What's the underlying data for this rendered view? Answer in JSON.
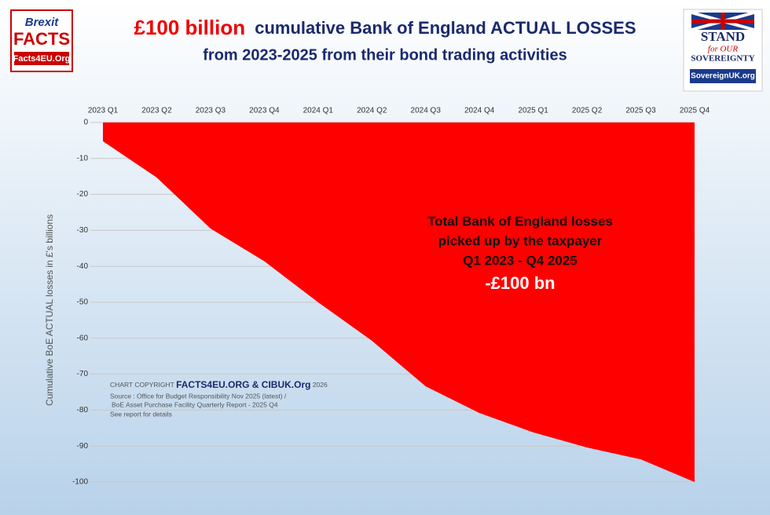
{
  "chart_data": {
    "type": "area",
    "title_highlight": "£100 billion",
    "title": "cumulative Bank of England ACTUAL LOSSES",
    "subtitle": "from 2023-2025 from their bond trading activities",
    "y_label": "Cumulative BoE ACTUAL losses in £'s billions",
    "categories": [
      "2023 Q1",
      "2023 Q2",
      "2023 Q3",
      "2023 Q4",
      "2024 Q1",
      "2024 Q2",
      "2024 Q3",
      "2024 Q4",
      "2025 Q1",
      "2025 Q2",
      "2025 Q3",
      "2025 Q4"
    ],
    "values": [
      -5.2,
      -15.3,
      -29.5,
      -38.6,
      -50,
      -60.7,
      -73.4,
      -80.8,
      -86.2,
      -90.4,
      -93.7,
      -100
    ],
    "color": "#ff0000",
    "ylim": [
      0,
      -100
    ],
    "yticks": [
      0,
      -10,
      -20,
      -30,
      -40,
      -50,
      -60,
      -70,
      -80,
      -90,
      -100
    ],
    "grid": true,
    "annotation": [
      "Total Bank of England losses",
      "picked up by the taxpayer",
      "Q1 2023 - Q4 2025",
      "-£100 bn"
    ],
    "copyright": {
      "prefix": "CHART COPYRIGHT",
      "brand": "FACTS4EU.ORG & CIBUK.Org",
      "year": "2026",
      "source1": "Source : Office for Budget Responsibility Nov 2025 (latest) /",
      "source2": "BoE Asset Purchase Facility Quarterly Report - 2025 Q4",
      "note": "See report for details"
    }
  },
  "logos": {
    "left": [
      "Brexit",
      "FACTS",
      "Facts4EU.Org"
    ],
    "right": [
      "STAND",
      "for OUR",
      "SOVEREIGNTY",
      "SovereignUK.org"
    ]
  }
}
